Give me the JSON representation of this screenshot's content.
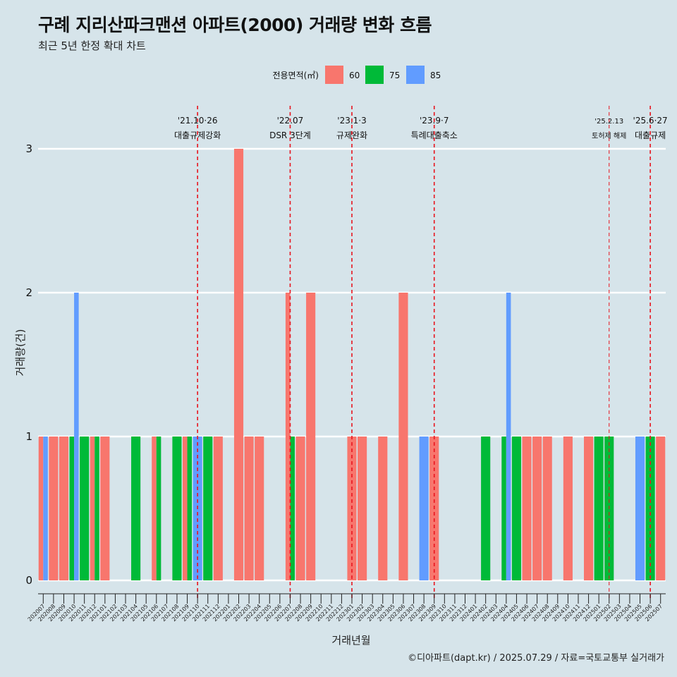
{
  "header": {
    "title": "구례 지리산파크맨션 아파트(2000) 거래량 변화 흐름",
    "subtitle": "최근 5년 한정 확대 차트"
  },
  "caption": "©디아파트(dapt.kr) / 2025.07.29 / 자료=국토교통부 실거래가",
  "colors": {
    "60": "#f8766d",
    "75": "#00ba38",
    "85": "#619cff",
    "background": "#d6e4ea",
    "event_line": "#e8141e"
  },
  "chart_data": {
    "type": "bar",
    "title": "구례 지리산파크맨션 아파트(2000) 거래량 변화 흐름",
    "subtitle": "최근 5년 한정 확대 차트",
    "xlabel": "거래년월",
    "ylabel": "거래량(건)",
    "ylim": [
      0,
      3
    ],
    "yticks": [
      0,
      1,
      2,
      3
    ],
    "grid": true,
    "legend": {
      "title": "전용면적(㎡)",
      "position": "top",
      "entries": [
        "60",
        "75",
        "85"
      ]
    },
    "categories": [
      "202007",
      "202008",
      "202009",
      "202010",
      "202011",
      "202012",
      "202101",
      "202102",
      "202103",
      "202104",
      "202105",
      "202106",
      "202107",
      "202108",
      "202109",
      "202110",
      "202111",
      "202112",
      "202201",
      "202202",
      "202203",
      "202204",
      "202205",
      "202206",
      "202207",
      "202208",
      "202209",
      "202210",
      "202211",
      "202212",
      "202301",
      "202302",
      "202303",
      "202304",
      "202305",
      "202306",
      "202307",
      "202308",
      "202309",
      "202310",
      "202311",
      "202312",
      "202401",
      "202402",
      "202403",
      "202404",
      "202405",
      "202406",
      "202407",
      "202408",
      "202409",
      "202410",
      "202411",
      "202412",
      "202501",
      "202502",
      "202503",
      "202504",
      "202505",
      "202506",
      "202507"
    ],
    "series": [
      {
        "name": "60",
        "values": [
          1,
          1,
          1,
          0,
          0,
          1,
          1,
          0,
          0,
          0,
          0,
          1,
          0,
          0,
          1,
          0,
          0,
          1,
          0,
          3,
          1,
          1,
          0,
          0,
          2,
          1,
          2,
          0,
          0,
          0,
          1,
          1,
          0,
          1,
          0,
          2,
          0,
          0,
          1,
          0,
          0,
          0,
          0,
          0,
          0,
          0,
          0,
          1,
          1,
          1,
          0,
          1,
          0,
          1,
          0,
          0,
          0,
          0,
          0,
          0,
          1
        ]
      },
      {
        "name": "75",
        "values": [
          0,
          0,
          0,
          1,
          1,
          1,
          0,
          0,
          0,
          1,
          0,
          1,
          0,
          1,
          1,
          0,
          1,
          0,
          0,
          0,
          0,
          0,
          0,
          0,
          1,
          0,
          0,
          0,
          0,
          0,
          0,
          0,
          0,
          0,
          0,
          0,
          0,
          0,
          0,
          0,
          0,
          0,
          0,
          1,
          0,
          1,
          1,
          0,
          0,
          0,
          0,
          0,
          0,
          0,
          1,
          1,
          0,
          0,
          0,
          1,
          0
        ]
      },
      {
        "name": "85",
        "values": [
          1,
          0,
          0,
          2,
          0,
          0,
          0,
          0,
          0,
          0,
          0,
          0,
          0,
          0,
          0,
          1,
          0,
          0,
          0,
          0,
          0,
          0,
          0,
          0,
          0,
          0,
          0,
          0,
          0,
          0,
          0,
          0,
          0,
          0,
          0,
          0,
          0,
          1,
          0,
          0,
          0,
          0,
          0,
          0,
          0,
          2,
          0,
          0,
          0,
          0,
          0,
          0,
          0,
          0,
          0,
          0,
          0,
          0,
          1,
          0,
          0
        ]
      }
    ],
    "events": [
      {
        "x": "202110",
        "date": "'21.10·26",
        "label": "대출규제강화"
      },
      {
        "x": "202207",
        "date": "'22.07",
        "label": "DSR 3단계"
      },
      {
        "x": "202301",
        "date": "'23.1·3",
        "label": "규제완화"
      },
      {
        "x": "202309",
        "date": "'23.9·7",
        "label": "특례대출축소"
      },
      {
        "x": "202502",
        "date": "'25.2.13",
        "label": "토허제 해제"
      },
      {
        "x": "202506",
        "date": "'25.6·27",
        "label": "대출규제"
      }
    ]
  }
}
